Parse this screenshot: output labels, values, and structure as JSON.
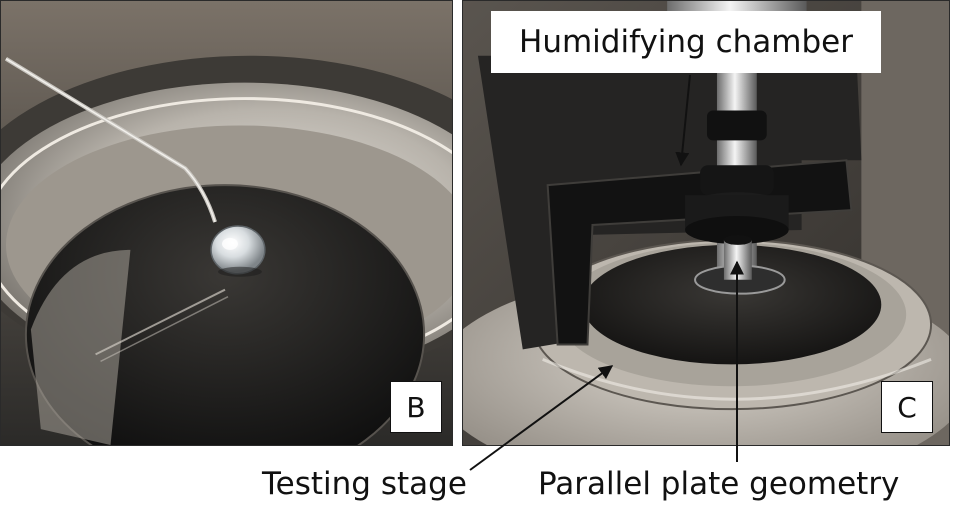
{
  "panels": {
    "b": {
      "letter": "B"
    },
    "c": {
      "letter": "C",
      "label": "Humidifying chamber"
    }
  },
  "captions": {
    "testing_stage": "Testing stage",
    "parallel_plate": "Parallel plate geometry"
  }
}
